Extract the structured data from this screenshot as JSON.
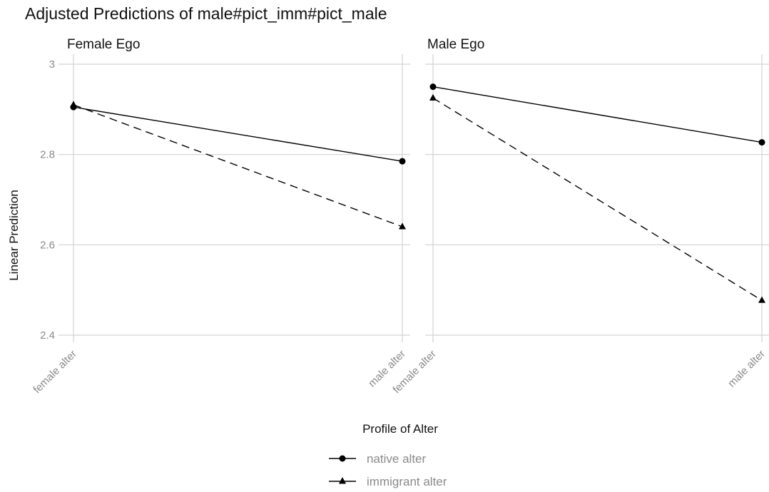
{
  "chart_data": {
    "type": "line",
    "title": "Adjusted Predictions of male#pict_imm#pict_male",
    "xlabel": "Profile of Alter",
    "ylabel": "Linear Prediction",
    "categories": [
      "female alter",
      "male alter"
    ],
    "ylim": [
      2.4,
      3.0
    ],
    "yticks": [
      "2.4",
      "2.6",
      "2.8",
      "3"
    ],
    "ytick_values": [
      2.4,
      2.6,
      2.8,
      3.0
    ],
    "grid": true,
    "legend_position": "bottom",
    "panels": [
      {
        "title": "Female Ego",
        "series": [
          {
            "name": "native alter",
            "marker": "circle",
            "dash": "solid",
            "values": [
              2.905,
              2.785
            ]
          },
          {
            "name": "immigrant alter",
            "marker": "triangle",
            "dash": "dashed",
            "values": [
              2.91,
              2.64
            ]
          }
        ]
      },
      {
        "title": "Male Ego",
        "series": [
          {
            "name": "native alter",
            "marker": "circle",
            "dash": "solid",
            "values": [
              2.95,
              2.827
            ]
          },
          {
            "name": "immigrant alter",
            "marker": "triangle",
            "dash": "dashed",
            "values": [
              2.925,
              2.477
            ]
          }
        ]
      }
    ],
    "legend": [
      {
        "name": "native alter",
        "marker": "circle"
      },
      {
        "name": "immigrant alter",
        "marker": "triangle"
      }
    ]
  }
}
